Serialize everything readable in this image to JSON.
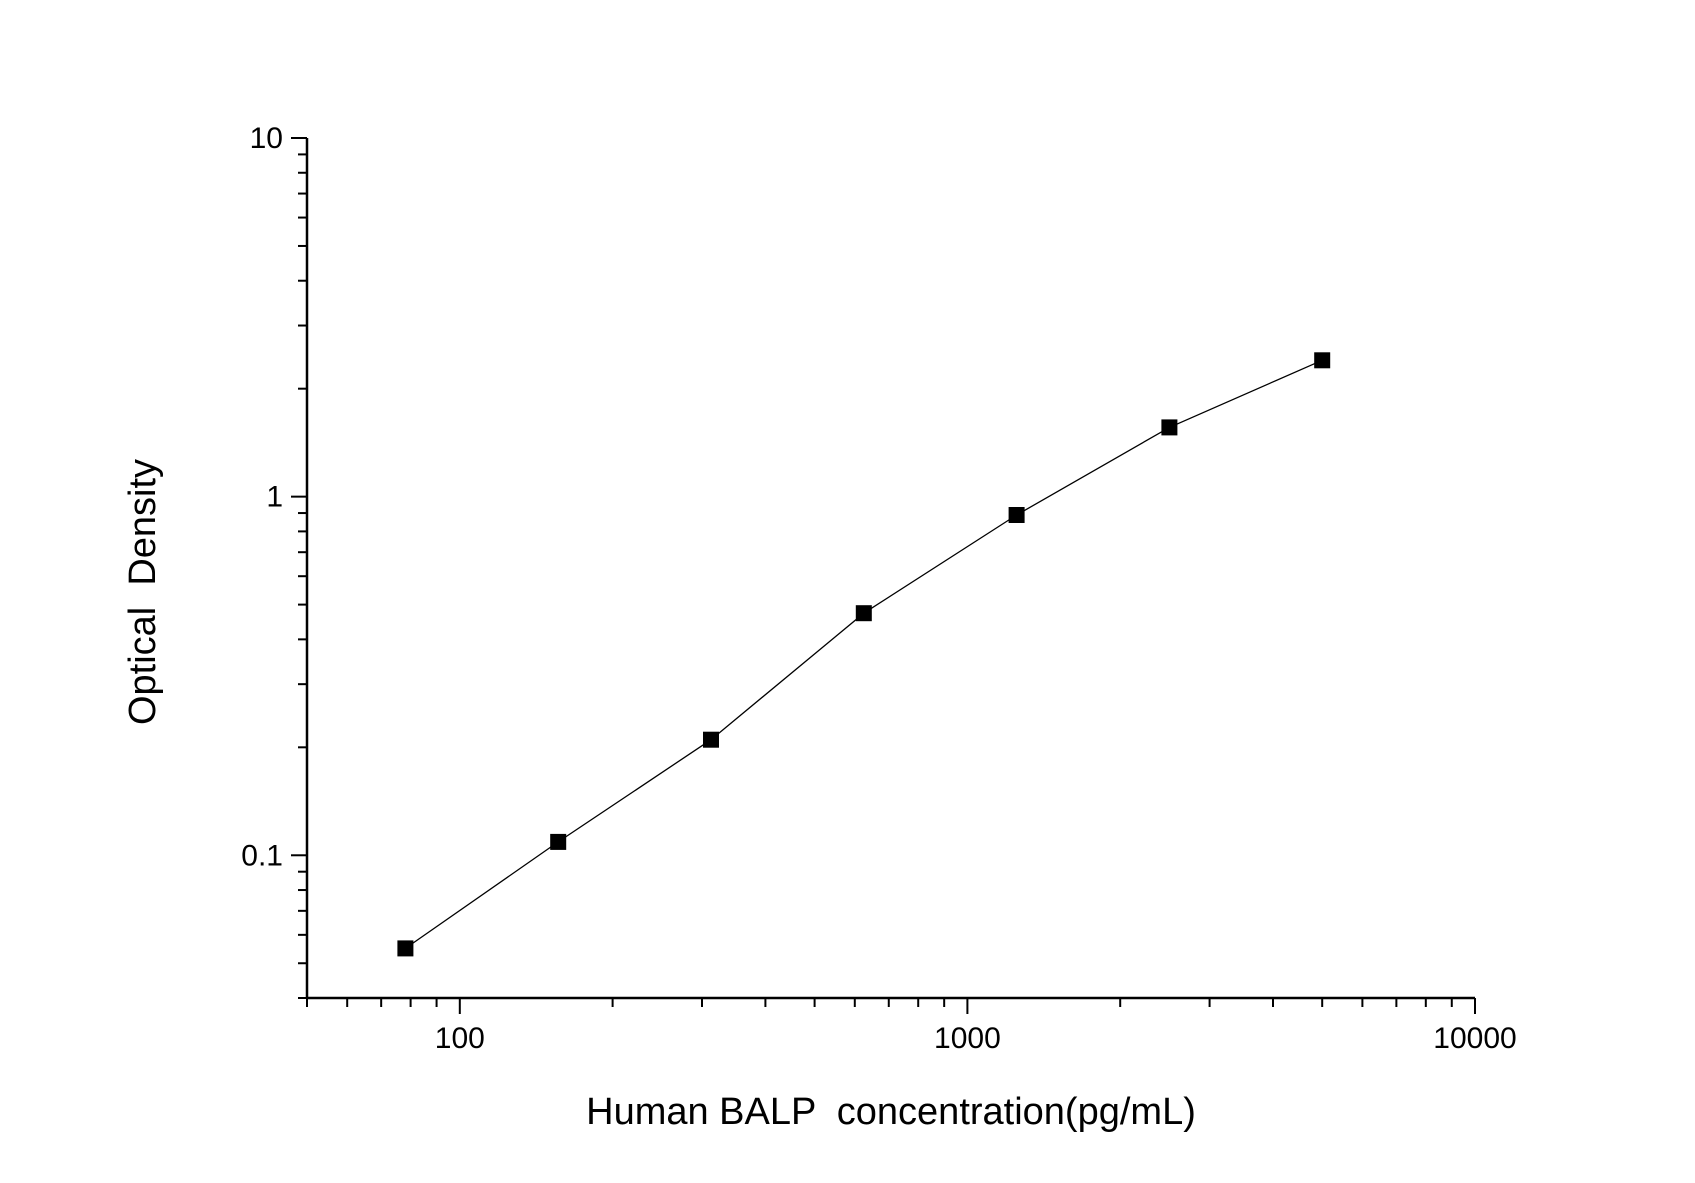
{
  "chart_data": {
    "type": "line",
    "xlabel": "Human BALP  concentration(pg/mL)",
    "ylabel": "Optical  Density",
    "x_scale": "log",
    "y_scale": "log",
    "xlim": [
      50,
      10000
    ],
    "ylim": [
      0.04,
      10
    ],
    "x_tick_labels": [
      "100",
      "1000",
      "10000"
    ],
    "y_tick_labels": [
      "0.1",
      "1",
      "10"
    ],
    "grid": false,
    "legend": "none",
    "marker": "square",
    "colors": {
      "line": "#000000",
      "marker": "#000000",
      "axis": "#000000"
    },
    "series": [
      {
        "x": [
          78.125,
          156.25,
          312.5,
          625,
          1250,
          2500,
          5000
        ],
        "y": [
          0.055,
          0.109,
          0.21,
          0.473,
          0.889,
          1.56,
          2.4
        ]
      }
    ]
  }
}
